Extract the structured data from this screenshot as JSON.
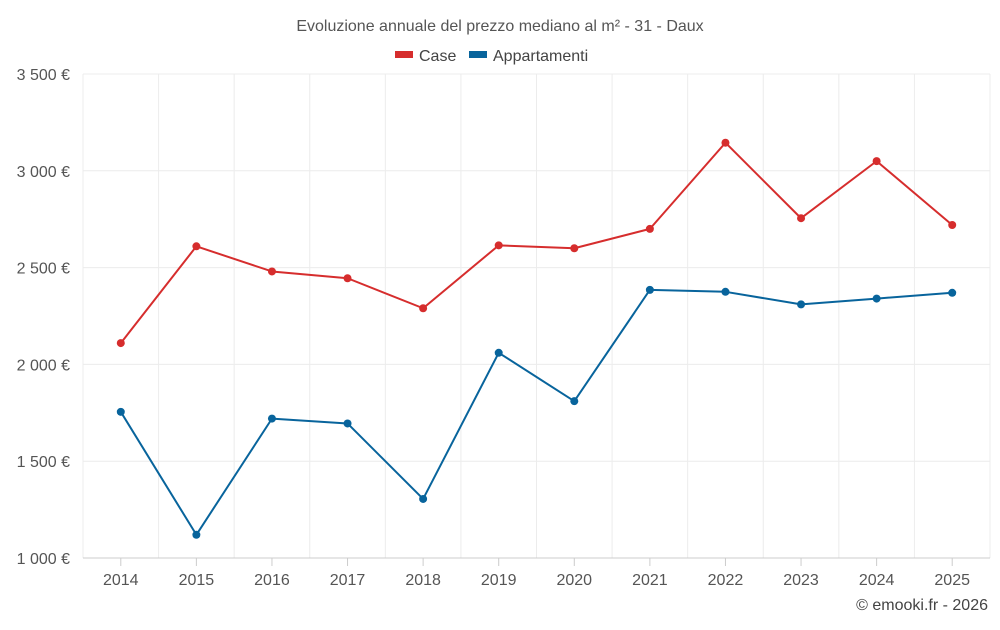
{
  "chart_data": {
    "type": "line",
    "title": "Evoluzione annuale del prezzo mediano al m² - 31 - Daux",
    "xlabel": "",
    "ylabel": "",
    "x": [
      "2014",
      "2015",
      "2016",
      "2017",
      "2018",
      "2019",
      "2020",
      "2021",
      "2022",
      "2023",
      "2024",
      "2025"
    ],
    "ylim": [
      1000,
      3500
    ],
    "yticks": [
      1000,
      1500,
      2000,
      2500,
      3000,
      3500
    ],
    "ytick_labels": [
      "1 000 €",
      "1 500 €",
      "2 000 €",
      "2 500 €",
      "3 000 €",
      "3 500 €"
    ],
    "grid": true,
    "legend_position": "top-center",
    "series": [
      {
        "name": "Case",
        "color": "#d62d2d",
        "values": [
          2110,
          2610,
          2480,
          2445,
          2290,
          2615,
          2600,
          2700,
          3145,
          2755,
          3050,
          2720
        ]
      },
      {
        "name": "Appartamenti",
        "color": "#08649c",
        "values": [
          1755,
          1120,
          1720,
          1695,
          1305,
          2060,
          1810,
          2385,
          2375,
          2310,
          2340,
          2370
        ]
      }
    ],
    "credit": "© emooki.fr - 2026"
  }
}
